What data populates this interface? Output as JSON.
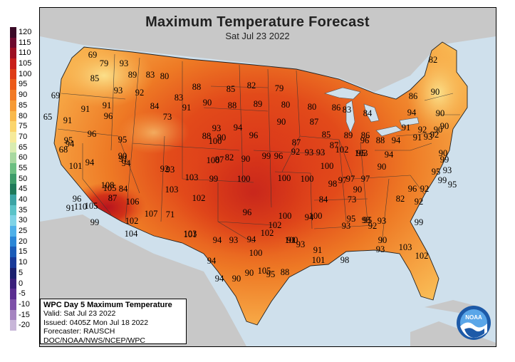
{
  "title": "Maximum Temperature Forecast",
  "subtitle": "Sat Jul 23 2022",
  "legend": {
    "labels": [
      "120",
      "115",
      "110",
      "105",
      "100",
      "95",
      "90",
      "85",
      "80",
      "75",
      "70",
      "65",
      "60",
      "55",
      "50",
      "45",
      "40",
      "35",
      "30",
      "25",
      "20",
      "15",
      "10",
      "5",
      "0",
      "-5",
      "-10",
      "-15",
      "-20"
    ],
    "colors": [
      "#3b0a27",
      "#6d0a2e",
      "#9c0f22",
      "#c81e1a",
      "#de3b16",
      "#ec5a19",
      "#f27a24",
      "#f69a35",
      "#f9b94c",
      "#fbd56c",
      "#f6ea9a",
      "#d9ecb0",
      "#a8d8a0",
      "#6cbf82",
      "#3d9c6a",
      "#1f7a5a",
      "#3ca4a4",
      "#5bc3c8",
      "#7fd3e6",
      "#4fb0e8",
      "#2b86d6",
      "#1c5cb8",
      "#1a3a98",
      "#1b1f6e",
      "#3a1f7a",
      "#5a2d90",
      "#7d50a8",
      "#a584c0",
      "#c8b6d8"
    ]
  },
  "info": {
    "title": "WPC Day 5 Maximum Temperature",
    "valid": "Valid: Sat Jul 23 2022",
    "issued": "Issued: 0405Z Mon Jul 18 2022",
    "forecaster": "Forecaster: RAUSCH",
    "org": "DOC/NOAA/NWS/NCEP/WPC"
  },
  "logo_text": "NOAA",
  "temperatures": [
    "69",
    "79",
    "93",
    "85",
    "89",
    "83",
    "80",
    "88",
    "85",
    "82",
    "79",
    "82",
    "86",
    "90",
    "69",
    "93",
    "92",
    "91",
    "96",
    "84",
    "73",
    "83",
    "91",
    "90",
    "88",
    "89",
    "80",
    "80",
    "86",
    "90",
    "65",
    "91",
    "91",
    "88",
    "90",
    "93",
    "94",
    "90",
    "87",
    "85",
    "83",
    "84",
    "94",
    "68",
    "94",
    "95",
    "96",
    "95",
    "100",
    "96",
    "92",
    "94",
    "90",
    "87",
    "87",
    "89",
    "86",
    "88",
    "91",
    "92",
    "93",
    "90",
    "90",
    "91",
    "94",
    "96",
    "90",
    "94",
    "92",
    "101",
    "91",
    "93",
    "100",
    "87",
    "82",
    "90",
    "96",
    "99",
    "93",
    "92",
    "93",
    "103",
    "102",
    "100",
    "99",
    "95",
    "93",
    "94",
    "90",
    "95",
    "97",
    "98",
    "105",
    "84",
    "99",
    "100",
    "103",
    "100",
    "100",
    "97",
    "97",
    "90",
    "96",
    "108",
    "110",
    "91",
    "87",
    "105",
    "103",
    "102",
    "96",
    "84",
    "73",
    "82",
    "92",
    "99",
    "95",
    "92",
    "71",
    "106",
    "107",
    "96",
    "99",
    "102",
    "104",
    "101",
    "102",
    "94",
    "94",
    "91",
    "100",
    "100",
    "95",
    "93",
    "93",
    "99",
    "102",
    "103",
    "100",
    "95",
    "93",
    "94",
    "93",
    "91",
    "98",
    "92",
    "90",
    "93",
    "103",
    "102",
    "101",
    "100",
    "93",
    "94",
    "105",
    "94",
    "90",
    "90",
    "95",
    "88"
  ]
}
